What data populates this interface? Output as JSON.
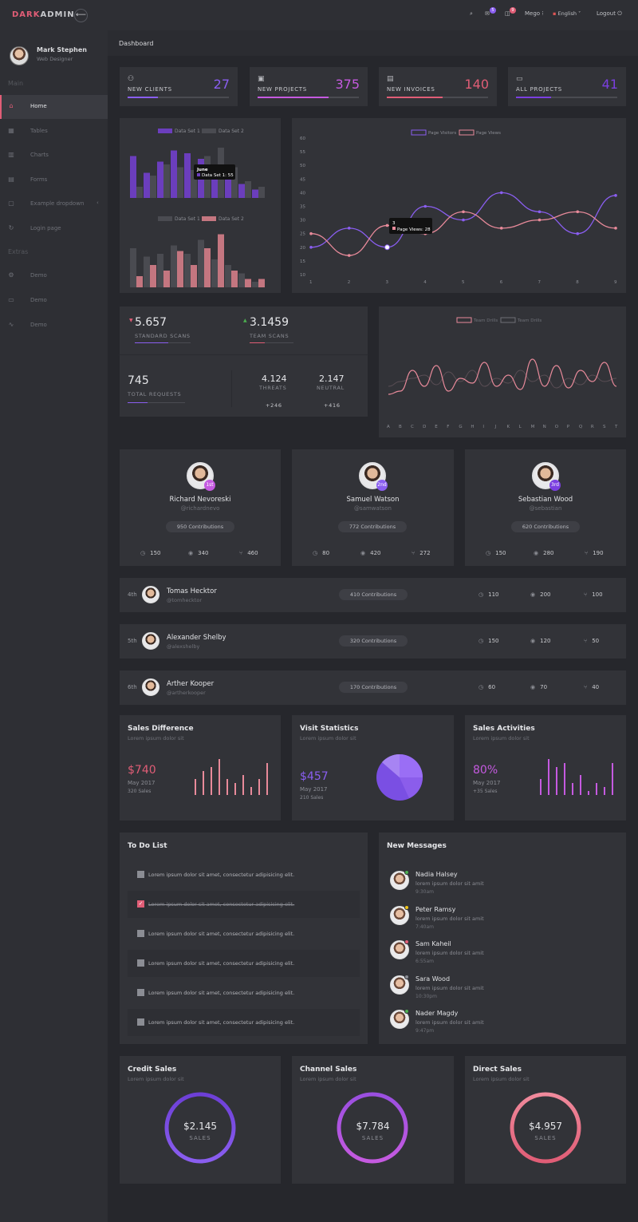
{
  "brand": {
    "part1": "DARK",
    "part2": "ADMIN"
  },
  "topbar": {
    "toggle_icon": "arrow-left-icon",
    "msg_badge": "5",
    "notif_badge": "9",
    "user": "Mego",
    "language": "English",
    "logout": "Logout"
  },
  "profile": {
    "name": "Mark Stephen",
    "role": "Web Designer"
  },
  "sidebar": {
    "main_title": "Main",
    "items": [
      {
        "label": "Home"
      },
      {
        "label": "Tables"
      },
      {
        "label": "Charts"
      },
      {
        "label": "Forms"
      },
      {
        "label": "Example dropdown"
      },
      {
        "label": "Login page"
      }
    ],
    "extras_title": "Extras",
    "extras": [
      {
        "label": "Demo"
      },
      {
        "label": "Demo"
      },
      {
        "label": "Demo"
      }
    ]
  },
  "breadcrumb": "Dashboard",
  "stats": [
    {
      "label": "NEW CLIENTS",
      "value": "27",
      "color": "#8a5ef0",
      "progress": 0.3
    },
    {
      "label": "NEW PROJECTS",
      "value": "375",
      "color": "#c55ae0",
      "progress": 0.7
    },
    {
      "label": "NEW INVOICES",
      "value": "140",
      "color": "#e05d76",
      "progress": 0.55
    },
    {
      "label": "ALL PROJECTS",
      "value": "41",
      "color": "#7b3fe0",
      "progress": 0.35
    }
  ],
  "chart_data": [
    {
      "type": "bar",
      "categories": [
        "1",
        "2",
        "3",
        "4",
        "5",
        "6",
        "7",
        "8",
        "9",
        "10"
      ],
      "series": [
        {
          "name": "Data Set 1",
          "values": [
            75,
            45,
            65,
            85,
            80,
            70,
            55,
            40,
            25,
            15
          ]
        },
        {
          "name": "Data Set 2",
          "values": [
            20,
            40,
            60,
            55,
            50,
            75,
            90,
            55,
            30,
            20
          ]
        }
      ],
      "tooltip": {
        "title": "June",
        "text": "Data Set 1: 55"
      }
    },
    {
      "type": "bar",
      "categories": [
        "1",
        "2",
        "3",
        "4",
        "5",
        "6",
        "7",
        "8",
        "9",
        "10"
      ],
      "series": [
        {
          "name": "Data Set 1",
          "values": [
            70,
            55,
            60,
            75,
            60,
            85,
            50,
            40,
            25,
            10
          ]
        },
        {
          "name": "Data Set 2",
          "values": [
            20,
            40,
            30,
            65,
            40,
            70,
            95,
            30,
            15,
            15
          ]
        }
      ]
    },
    {
      "type": "line",
      "x": [
        "1",
        "2",
        "3",
        "4",
        "5",
        "6",
        "7",
        "8",
        "9"
      ],
      "ylim": [
        10,
        60
      ],
      "yticks": [
        "60",
        "55",
        "50",
        "45",
        "40",
        "35",
        "30",
        "25",
        "20",
        "15",
        "10"
      ],
      "series": [
        {
          "name": "Page Visitors",
          "values": [
            20,
            27,
            20,
            35,
            30,
            40,
            33,
            25,
            39
          ]
        },
        {
          "name": "Page Views",
          "values": [
            25,
            17,
            28,
            25,
            33,
            27,
            30,
            33,
            27
          ]
        }
      ],
      "tooltip": {
        "title": "3",
        "text": "Page Views: 28"
      }
    },
    {
      "type": "line",
      "x": [
        "A",
        "B",
        "C",
        "D",
        "E",
        "F",
        "G",
        "H",
        "I",
        "J",
        "K",
        "L",
        "M",
        "N",
        "O",
        "P",
        "Q",
        "R",
        "S",
        "T"
      ],
      "series": [
        {
          "name": "Team Drills",
          "values": [
            40,
            42,
            55,
            45,
            58,
            42,
            50,
            47,
            60,
            45,
            52,
            43,
            62,
            45,
            58,
            44,
            55,
            48,
            60,
            45
          ]
        },
        {
          "name": "Team Drills",
          "values": [
            45,
            48,
            50,
            52,
            46,
            54,
            48,
            55,
            45,
            50,
            47,
            55,
            48,
            52,
            44,
            50,
            46,
            52,
            48,
            50
          ]
        }
      ]
    }
  ],
  "scans": {
    "standard": {
      "value": "5.657",
      "label": "STANDARD SCANS"
    },
    "team": {
      "value": "3.1459",
      "label": "TEAM SCANS"
    },
    "total": {
      "value": "745",
      "label": "TOTAL REQUESTS"
    },
    "threats": {
      "value": "4.124",
      "label": "THREATS",
      "delta": "+246"
    },
    "neutral": {
      "value": "2.147",
      "label": "NEUTRAL",
      "delta": "+416"
    }
  },
  "leaders": [
    {
      "name": "Richard Nevoreski",
      "handle": "@richardnevo",
      "rank": "1st",
      "contrib": "950 Contributions",
      "m1": "150",
      "m2": "340",
      "m3": "460",
      "color": "#c55ae0"
    },
    {
      "name": "Samuel Watson",
      "handle": "@samwatson",
      "rank": "2nd",
      "contrib": "772 Contributions",
      "m1": "80",
      "m2": "420",
      "m3": "272",
      "color": "#8a5ef0"
    },
    {
      "name": "Sebastian Wood",
      "handle": "@sebastian",
      "rank": "3rd",
      "contrib": "620 Contributions",
      "m1": "150",
      "m2": "280",
      "m3": "190",
      "color": "#7b3fe0"
    }
  ],
  "rows": [
    {
      "rank": "4th",
      "name": "Tomas Hecktor",
      "handle": "@tomhecktor",
      "contrib": "410 Contributions",
      "m1": "110",
      "m2": "200",
      "m3": "100"
    },
    {
      "rank": "5th",
      "name": "Alexander Shelby",
      "handle": "@alexshelby",
      "contrib": "320 Contributions",
      "m1": "150",
      "m2": "120",
      "m3": "50"
    },
    {
      "rank": "6th",
      "name": "Arther Kooper",
      "handle": "@artherkooper",
      "contrib": "170 Contributions",
      "m1": "60",
      "m2": "70",
      "m3": "40"
    }
  ],
  "sales": [
    {
      "title": "Sales Difference",
      "sub": "Lorem ipsum dolor sit",
      "value": "$740",
      "date": "May 2017",
      "note": "320 Sales",
      "color": "#e05d76",
      "bars": [
        20,
        30,
        35,
        45,
        20,
        15,
        25,
        10,
        20,
        40
      ]
    },
    {
      "title": "Visit Statistics",
      "sub": "Lorem ipsum dolor sit",
      "value": "$457",
      "date": "May 2017",
      "note": "210 Sales",
      "color": "#8a5ef0"
    },
    {
      "title": "Sales Activities",
      "sub": "Lorem ipsum dolor sit",
      "value": "80%",
      "date": "May 2017",
      "note": "+35 Sales",
      "color": "#c55ae0",
      "bars": [
        20,
        45,
        35,
        40,
        15,
        25,
        5,
        15,
        10,
        40
      ]
    }
  ],
  "todo": {
    "title": "To Do List",
    "items": [
      {
        "text": "Lorem ipsum dolor sit amet, consectetur adipisicing elit.",
        "done": false
      },
      {
        "text": "Lorem ipsum dolor sit amet, consectetur adipisicing elit.",
        "done": true
      },
      {
        "text": "Lorem ipsum dolor sit amet, consectetur adipisicing elit.",
        "done": false
      },
      {
        "text": "Lorem ipsum dolor sit amet, consectetur adipisicing elit.",
        "done": false
      },
      {
        "text": "Lorem ipsum dolor sit amet, consectetur adipisicing elit.",
        "done": false
      },
      {
        "text": "Lorem ipsum dolor sit amet, consectetur adipisicing elit.",
        "done": false
      }
    ]
  },
  "messages": {
    "title": "New Messages",
    "items": [
      {
        "name": "Nadia Halsey",
        "text": "lorem ipsum dolor sit amit",
        "time": "9:30am",
        "status": "#4caf50"
      },
      {
        "name": "Peter Ramsy",
        "text": "lorem ipsum dolor sit amit",
        "time": "7:40am",
        "status": "#f0c419"
      },
      {
        "name": "Sam Kaheil",
        "text": "lorem ipsum dolor sit amit",
        "time": "6:55am",
        "status": "#e05d76"
      },
      {
        "name": "Sara Wood",
        "text": "lorem ipsum dolor sit amit",
        "time": "10:30pm",
        "status": "#8b8d94"
      },
      {
        "name": "Nader Magdy",
        "text": "lorem ipsum dolor sit amit",
        "time": "9:47pm",
        "status": "#4caf50"
      }
    ]
  },
  "rings": [
    {
      "title": "Credit Sales",
      "sub": "Lorem ipsum dolor sit",
      "value": "$2.145",
      "label": "SALES",
      "c1": "#8a5ef0",
      "c2": "#6d3fd6"
    },
    {
      "title": "Channel Sales",
      "sub": "Lorem ipsum dolor sit",
      "value": "$7.784",
      "label": "SALES",
      "c1": "#c55ae0",
      "c2": "#9a4fe0"
    },
    {
      "title": "Direct Sales",
      "sub": "Lorem ipsum dolor sit",
      "value": "$4.957",
      "label": "SALES",
      "c1": "#e05d76",
      "c2": "#f08a9c"
    }
  ]
}
